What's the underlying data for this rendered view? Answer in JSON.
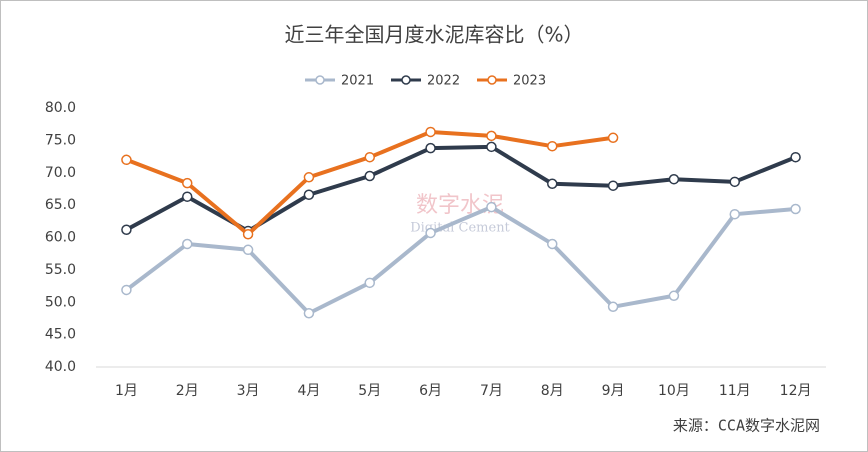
{
  "chart_data": {
    "type": "line",
    "title": "近三年全国月度水泥库容比（%）",
    "categories": [
      "1月",
      "2月",
      "3月",
      "4月",
      "5月",
      "6月",
      "7月",
      "8月",
      "9月",
      "10月",
      "11月",
      "12月"
    ],
    "series": [
      {
        "name": "2021",
        "color": "#a9b8cc",
        "values": [
          51.9,
          59.0,
          58.1,
          48.3,
          53.0,
          60.7,
          64.7,
          59.0,
          49.3,
          51.0,
          63.6,
          64.4
        ]
      },
      {
        "name": "2022",
        "color": "#2f3b4c",
        "values": [
          61.2,
          66.3,
          61.0,
          66.6,
          69.5,
          73.8,
          74.0,
          68.3,
          68.0,
          69.0,
          68.6,
          72.4
        ]
      },
      {
        "name": "2023",
        "color": "#e8711f",
        "values": [
          72.0,
          68.4,
          60.5,
          69.3,
          72.4,
          76.3,
          75.7,
          74.1,
          75.4,
          null,
          null,
          null
        ]
      }
    ],
    "ylim": [
      40,
      80
    ],
    "yticks": [
      {
        "value": 40,
        "label": "40.0"
      },
      {
        "value": 45,
        "label": "45.0"
      },
      {
        "value": 50,
        "label": "50.0"
      },
      {
        "value": 55,
        "label": "55.0"
      },
      {
        "value": 60,
        "label": "60.0"
      },
      {
        "value": 65,
        "label": "65.0"
      },
      {
        "value": 70,
        "label": "70.0"
      },
      {
        "value": 75,
        "label": "75.0"
      },
      {
        "value": 80,
        "label": "80.0"
      }
    ],
    "grid": false,
    "legend": "top",
    "watermark": "数字水泥",
    "watermark_sub": "Digital Cement",
    "source": "来源：CCA数字水泥网"
  }
}
